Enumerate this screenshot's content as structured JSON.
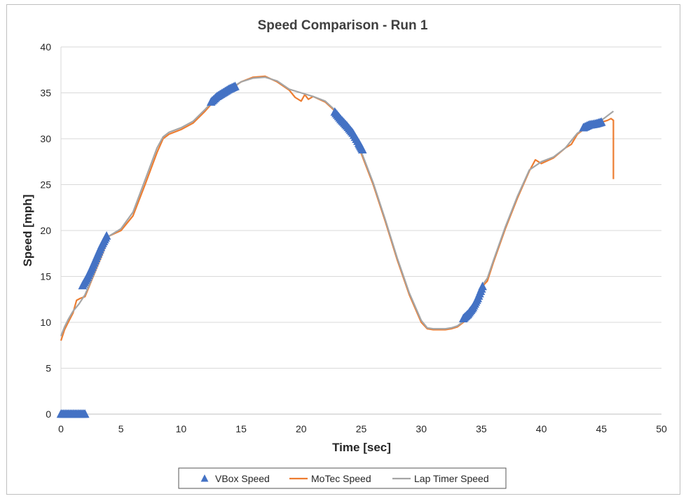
{
  "chart_data": {
    "type": "line",
    "title": "Speed Comparison - Run 1",
    "xlabel": "Time [sec]",
    "ylabel": "Speed [mph]",
    "xlim": [
      0,
      50
    ],
    "ylim": [
      0,
      40
    ],
    "xticks": [
      0,
      5,
      10,
      15,
      20,
      25,
      30,
      35,
      40,
      45,
      50
    ],
    "yticks": [
      0,
      5,
      10,
      15,
      20,
      25,
      30,
      35,
      40
    ],
    "grid": "horizontal",
    "legend_position": "bottom",
    "series": [
      {
        "name": "VBox Speed",
        "kind": "scatter",
        "marker": "triangle",
        "color": "#4472C4",
        "segments": [
          {
            "x": [
              0,
              0.5,
              1.0,
              1.5,
              2.0
            ],
            "y": [
              0,
              0,
              0,
              0,
              0
            ]
          },
          {
            "x": [
              1.8,
              2.2,
              2.6,
              3.0,
              3.4,
              3.8
            ],
            "y": [
              14.0,
              14.9,
              16.0,
              17.2,
              18.4,
              19.4
            ]
          },
          {
            "x": [
              12.5,
              13.0,
              13.5,
              14.0,
              14.5
            ],
            "y": [
              34.0,
              34.6,
              35.0,
              35.4,
              35.7
            ]
          },
          {
            "x": [
              22.8,
              23.3,
              23.8,
              24.3,
              24.8,
              25.1
            ],
            "y": [
              32.9,
              32.1,
              31.4,
              30.6,
              29.5,
              28.8
            ]
          },
          {
            "x": [
              33.5,
              33.9,
              34.3,
              34.7,
              35.1
            ],
            "y": [
              10.4,
              10.9,
              11.6,
              12.6,
              13.9
            ]
          },
          {
            "x": [
              43.5,
              44.0,
              44.5,
              45.0
            ],
            "y": [
              31.2,
              31.5,
              31.6,
              31.8
            ]
          }
        ]
      },
      {
        "name": "MoTec Speed",
        "kind": "line",
        "color": "#ED7D31",
        "x": [
          0,
          0.3,
          0.6,
          1.0,
          1.3,
          1.6,
          2.0,
          2.5,
          3.0,
          3.5,
          4.0,
          5.0,
          6.0,
          7.0,
          8.0,
          8.5,
          9.0,
          10.0,
          11.0,
          12.0,
          13.0,
          14.0,
          15.0,
          16.0,
          17.0,
          18.0,
          19.0,
          19.5,
          20.0,
          20.3,
          20.6,
          21.0,
          22.0,
          23.0,
          24.0,
          25.0,
          26.0,
          27.0,
          28.0,
          29.0,
          30.0,
          30.5,
          31.0,
          31.5,
          32.0,
          32.5,
          33.0,
          33.5,
          34.0,
          34.5,
          35.0,
          35.5,
          36.0,
          37.0,
          38.0,
          39.0,
          39.5,
          40.0,
          41.0,
          42.0,
          42.5,
          43.0,
          43.5,
          44.0,
          44.5,
          45.0,
          45.5,
          45.8,
          46.0,
          46.0
        ],
        "y": [
          8.0,
          9.2,
          10.0,
          11.0,
          12.4,
          12.6,
          12.8,
          14.4,
          16.0,
          17.6,
          19.4,
          20.0,
          21.6,
          25.0,
          28.5,
          30.0,
          30.5,
          31.0,
          31.7,
          33.0,
          34.5,
          35.3,
          36.2,
          36.7,
          36.8,
          36.2,
          35.3,
          34.5,
          34.1,
          34.8,
          34.3,
          34.6,
          34.0,
          32.8,
          30.6,
          28.4,
          25.0,
          21.0,
          16.8,
          13.0,
          10.0,
          9.3,
          9.2,
          9.2,
          9.2,
          9.3,
          9.5,
          10.0,
          10.5,
          12.0,
          13.8,
          14.5,
          16.5,
          20.2,
          23.5,
          26.5,
          27.7,
          27.3,
          27.9,
          29.0,
          29.4,
          30.5,
          31.0,
          31.3,
          31.6,
          31.8,
          32.0,
          32.2,
          32.0,
          25.6
        ]
      },
      {
        "name": "Lap Timer Speed",
        "kind": "line",
        "color": "#A5A5A5",
        "x": [
          0,
          0.3,
          0.6,
          1.0,
          1.5,
          2.0,
          2.5,
          3.0,
          3.5,
          4.0,
          5.0,
          6.0,
          7.0,
          8.0,
          8.5,
          9.0,
          10.0,
          11.0,
          12.0,
          13.0,
          14.0,
          15.0,
          16.0,
          17.0,
          18.0,
          19.0,
          20.0,
          21.0,
          22.0,
          23.0,
          24.0,
          25.0,
          26.0,
          27.0,
          28.0,
          29.0,
          30.0,
          30.5,
          31.0,
          31.5,
          32.0,
          32.5,
          33.0,
          33.5,
          34.0,
          34.5,
          35.0,
          35.5,
          36.0,
          37.0,
          38.0,
          39.0,
          40.0,
          41.0,
          42.0,
          43.0,
          44.0,
          45.0,
          46.0
        ],
        "y": [
          8.5,
          9.5,
          10.3,
          11.2,
          12.0,
          13.0,
          14.5,
          16.1,
          17.7,
          19.4,
          20.2,
          22.0,
          25.5,
          29.0,
          30.2,
          30.7,
          31.2,
          31.9,
          33.2,
          34.6,
          35.4,
          36.2,
          36.6,
          36.7,
          36.3,
          35.4,
          35.0,
          34.6,
          34.1,
          32.9,
          30.8,
          28.6,
          25.2,
          21.2,
          17.0,
          13.2,
          10.2,
          9.4,
          9.3,
          9.3,
          9.3,
          9.4,
          9.6,
          10.1,
          10.7,
          12.2,
          13.9,
          14.8,
          16.7,
          20.4,
          23.7,
          26.6,
          27.5,
          28.0,
          29.0,
          30.6,
          31.5,
          32.0,
          33.0
        ]
      }
    ]
  }
}
